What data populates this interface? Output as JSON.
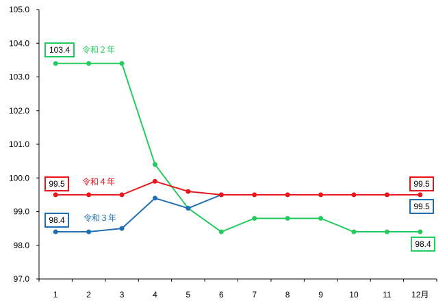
{
  "chart_data": {
    "type": "line",
    "categories": [
      "1",
      "2",
      "3",
      "4",
      "5",
      "6",
      "7",
      "8",
      "9",
      "10",
      "11",
      "12月"
    ],
    "ylim": [
      97.0,
      105.0
    ],
    "yticks": [
      "97.0",
      "98.0",
      "99.0",
      "100.0",
      "101.0",
      "102.0",
      "103.0",
      "104.0",
      "105.0"
    ],
    "grid": false,
    "series": [
      {
        "name": "令和２年",
        "color": "#22CC5E",
        "values": [
          103.4,
          103.4,
          103.4,
          100.4,
          99.1,
          98.4,
          98.8,
          98.8,
          98.8,
          98.4,
          98.4,
          98.4
        ],
        "start_label": "103.4",
        "end_label": "98.4"
      },
      {
        "name": "令和３年",
        "color": "#1F6FB4",
        "values": [
          98.4,
          98.4,
          98.5,
          99.4,
          99.1,
          99.5,
          null,
          null,
          null,
          null,
          null,
          null
        ],
        "start_label": "98.4",
        "end_label": "99.5"
      },
      {
        "name": "令和４年",
        "color": "#E8151B",
        "values": [
          99.5,
          99.5,
          99.5,
          99.9,
          99.6,
          99.5,
          99.5,
          99.5,
          99.5,
          99.5,
          99.5,
          99.5
        ],
        "start_label": "99.5",
        "end_label": "99.5"
      }
    ]
  }
}
